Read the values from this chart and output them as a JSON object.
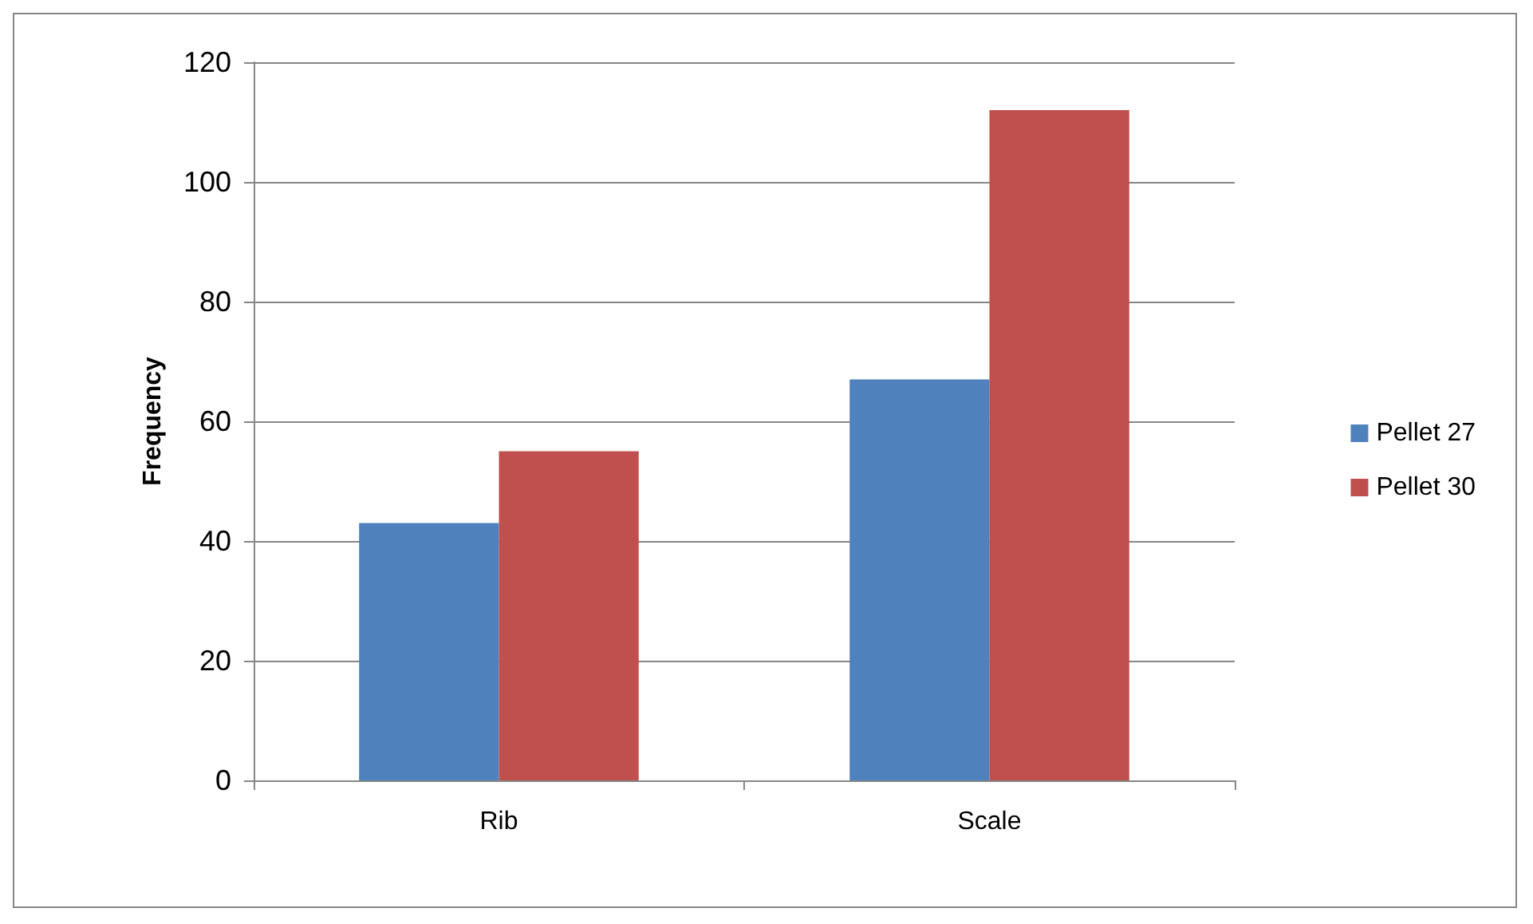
{
  "chart_data": {
    "type": "bar",
    "ylabel": "Frequency",
    "categories": [
      "Rib",
      "Scale"
    ],
    "series": [
      {
        "name": "Pellet 27",
        "color": "#4f81bd",
        "values": [
          43,
          67
        ]
      },
      {
        "name": "Pellet 30",
        "color": "#c0504d",
        "values": [
          55,
          112
        ]
      }
    ],
    "ylim": [
      0,
      120
    ],
    "yticks": [
      0,
      20,
      40,
      60,
      80,
      100,
      120
    ],
    "grid": "y",
    "legend": "right"
  }
}
